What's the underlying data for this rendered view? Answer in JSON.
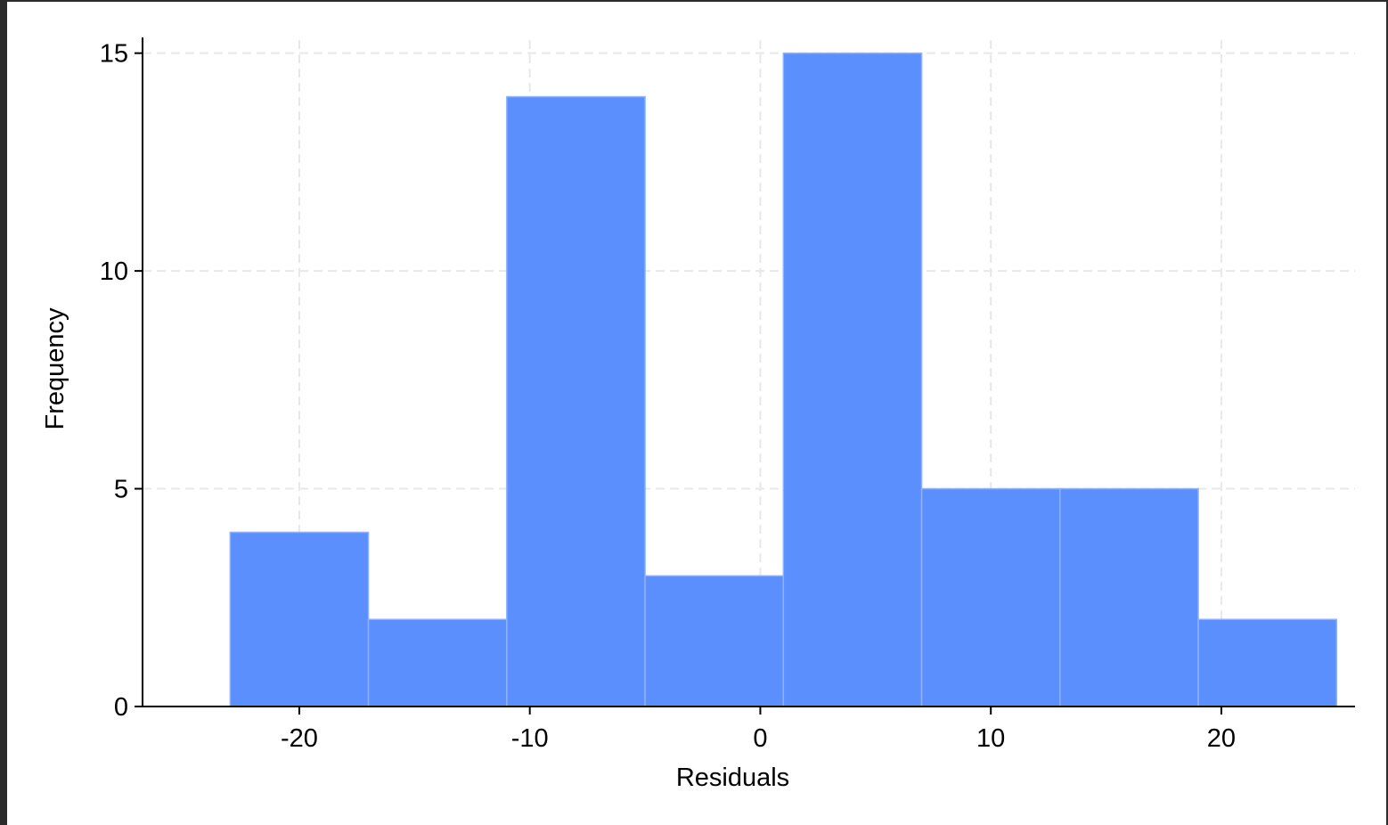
{
  "chart_data": {
    "type": "bar",
    "subtype": "histogram",
    "title": "",
    "xlabel": "Residuals",
    "ylabel": "Frequency",
    "bins": [
      {
        "x0": -23,
        "x1": -17,
        "count": 4
      },
      {
        "x0": -17,
        "x1": -11,
        "count": 2
      },
      {
        "x0": -11,
        "x1": -5,
        "count": 14
      },
      {
        "x0": -5,
        "x1": 1,
        "count": 3
      },
      {
        "x0": 1,
        "x1": 7,
        "count": 15
      },
      {
        "x0": 7,
        "x1": 13,
        "count": 5
      },
      {
        "x0": 13,
        "x1": 19,
        "count": 5
      },
      {
        "x0": 19,
        "x1": 25,
        "count": 2
      }
    ],
    "xlim": [
      -26.8,
      25.8
    ],
    "ylim": [
      0,
      15.3
    ],
    "xticks": [
      -20,
      -10,
      0,
      10,
      20
    ],
    "xtick_labels": [
      "-20",
      "-10",
      "0",
      "10",
      "20"
    ],
    "yticks": [
      0,
      5,
      10,
      15
    ],
    "ytick_labels": [
      "0",
      "5",
      "10",
      "15"
    ],
    "grid": true,
    "bar_color": "#5b8ffd",
    "bar_edge_color": "#8fb2fb",
    "grid_color": "#e8e8e8"
  }
}
